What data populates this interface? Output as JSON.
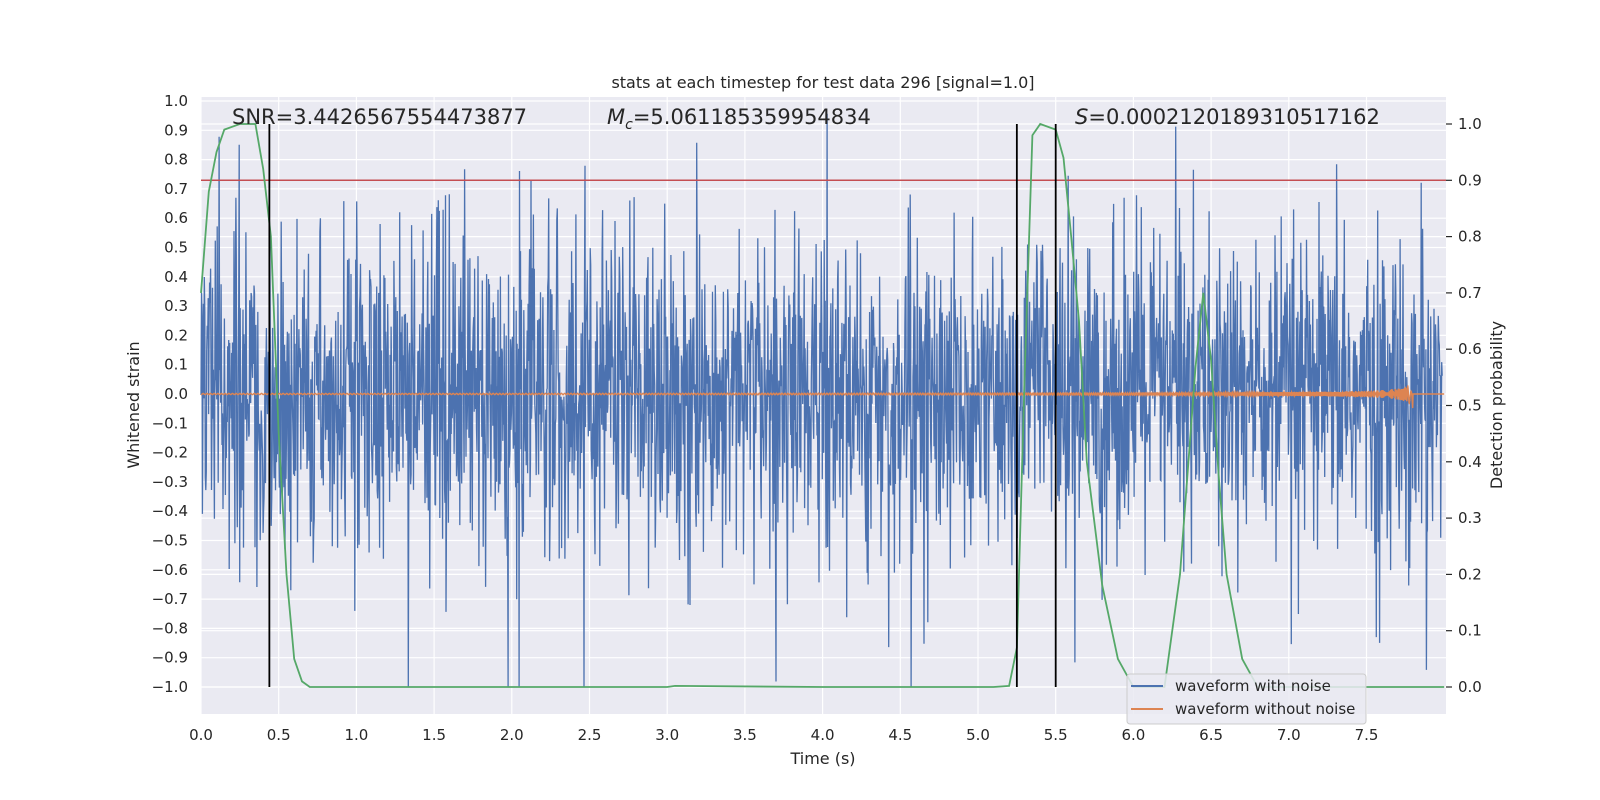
{
  "chart_data": {
    "type": "line",
    "title": "stats at each timestep for test data 296 [signal=1.0]",
    "xlabel": "Time (s)",
    "ylabel": "Whitened strain",
    "y2label": "Detection probability",
    "xlim": [
      0.0,
      8.0
    ],
    "ylim": [
      -1.1,
      1.1
    ],
    "y2lim": [
      -0.05,
      1.04
    ],
    "x_ticks": [
      "0.0",
      "0.5",
      "1.0",
      "1.5",
      "2.0",
      "2.5",
      "3.0",
      "3.5",
      "4.0",
      "4.5",
      "5.0",
      "5.5",
      "6.0",
      "6.5",
      "7.0",
      "7.5"
    ],
    "y_ticks": [
      "1.0",
      "0.9",
      "0.8",
      "0.7",
      "0.6",
      "0.5",
      "0.4",
      "0.3",
      "0.2",
      "0.1",
      "0.0",
      "−0.1",
      "−0.2",
      "−0.3",
      "−0.4",
      "−0.5",
      "−0.6",
      "−0.7",
      "−0.8",
      "−0.9",
      "−1.0"
    ],
    "y2_ticks": [
      "1.0",
      "0.9",
      "0.8",
      "0.7",
      "0.6",
      "0.5",
      "0.4",
      "0.3",
      "0.2",
      "0.1",
      "0.0"
    ],
    "grid": true,
    "annotations": {
      "snr_name": "SNR",
      "snr_value": "=3.4426567554473877",
      "mc_name": "M",
      "mc_sub": "c",
      "mc_value": "=5.061185359954834",
      "s_name": "S",
      "s_value": "=0.00021201893105171 62"
    },
    "threshold": 0.9,
    "vertical_lines_x": [
      0.44,
      5.25,
      5.5
    ],
    "series": [
      {
        "name": "waveform with noise",
        "color": "#4c72b0",
        "axis": "left",
        "description_values": "dense noise envelope",
        "max_abs": 1.0
      },
      {
        "name": "waveform without noise",
        "color": "#dd8452",
        "axis": "left",
        "chirp_end_x": 7.8,
        "chirp_peak_amplitude": 0.09
      },
      {
        "name": "detection probability",
        "color": "#55a868",
        "axis": "right",
        "x": [
          0.0,
          0.05,
          0.1,
          0.15,
          0.25,
          0.35,
          0.4,
          0.45,
          0.5,
          0.55,
          0.6,
          0.65,
          0.7,
          1.0,
          2.0,
          3.0,
          3.05,
          4.0,
          5.0,
          5.1,
          5.2,
          5.25,
          5.3,
          5.35,
          5.4,
          5.5,
          5.55,
          5.6,
          5.65,
          5.7,
          5.8,
          5.9,
          6.0,
          6.1,
          6.2,
          6.3,
          6.4,
          6.45,
          6.5,
          6.55,
          6.6,
          6.7,
          6.8,
          7.0,
          7.5,
          8.0
        ],
        "y": [
          0.7,
          0.88,
          0.95,
          0.99,
          1.0,
          1.0,
          0.92,
          0.8,
          0.45,
          0.2,
          0.05,
          0.01,
          0.0,
          0.0,
          0.0,
          0.0,
          0.002,
          0.0,
          0.0,
          0.0,
          0.002,
          0.07,
          0.55,
          0.98,
          1.0,
          0.99,
          0.94,
          0.8,
          0.65,
          0.4,
          0.18,
          0.05,
          0.0,
          0.0,
          0.0,
          0.2,
          0.57,
          0.7,
          0.58,
          0.37,
          0.2,
          0.05,
          0.0,
          0.0,
          0.0,
          0.0
        ]
      }
    ],
    "threshold_color": "#c44e52",
    "vline_color": "#000000",
    "legend": {
      "placement": "lower-right",
      "entries": [
        "waveform with noise",
        "waveform without noise"
      ]
    }
  }
}
